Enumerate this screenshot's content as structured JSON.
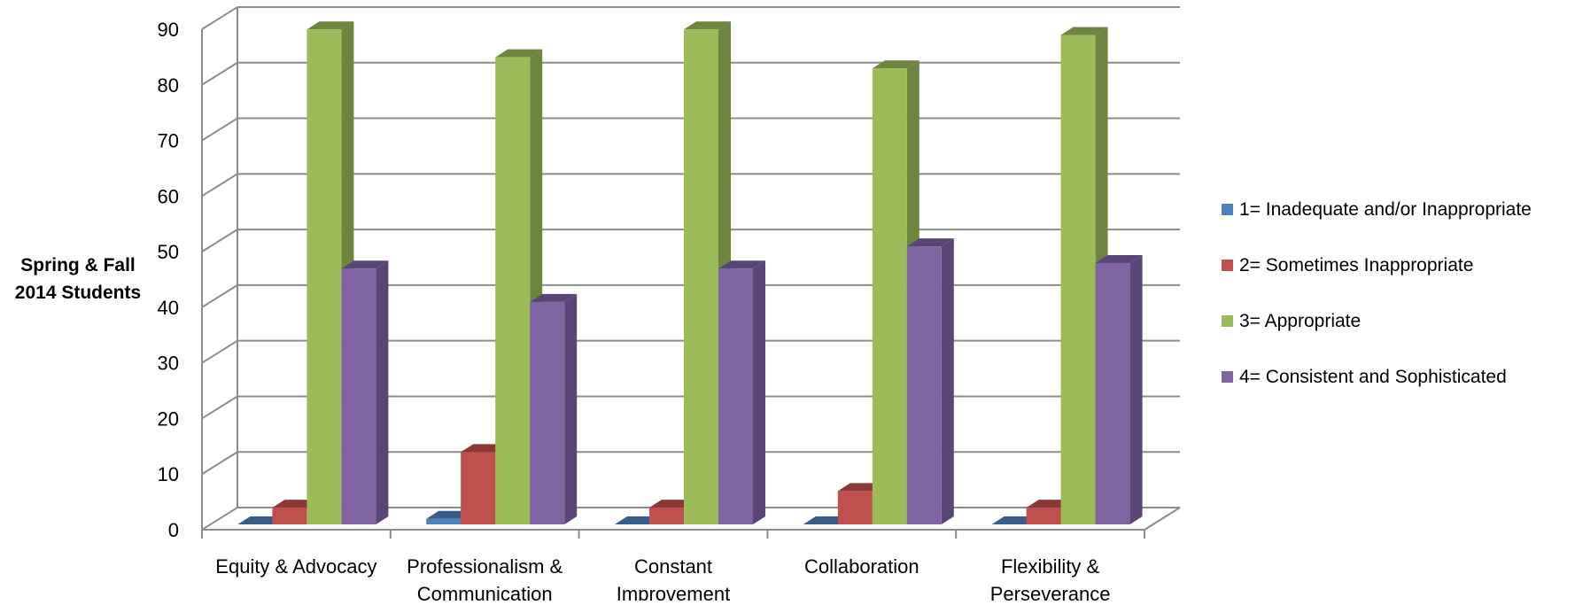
{
  "chart_data": {
    "type": "bar",
    "title": "",
    "xlabel": "",
    "ylabel_lines": [
      "Spring & Fall",
      "2014 Students"
    ],
    "ylim": [
      0,
      90
    ],
    "yticks": [
      "0",
      "10",
      "20",
      "30",
      "40",
      "50",
      "60",
      "70",
      "80",
      "90"
    ],
    "grid": true,
    "legend_position": "right",
    "categories": [
      [
        "Equity & Advocacy"
      ],
      [
        "Professionalism &",
        "Communication"
      ],
      [
        "Constant",
        "Improvement"
      ],
      [
        "Collaboration"
      ],
      [
        "Flexibility &",
        "Perseverance"
      ]
    ],
    "series": [
      {
        "name": "1= Inadequate and/or Inappropriate",
        "color": "#4F81BD",
        "side_color": "#385D8A",
        "values": [
          0,
          1,
          0,
          0,
          0
        ]
      },
      {
        "name": "2= Sometimes Inappropriate",
        "color": "#C0504D",
        "side_color": "#8C3836",
        "values": [
          3,
          13,
          3,
          6,
          3
        ]
      },
      {
        "name": "3= Appropriate",
        "color": "#9BBB59",
        "side_color": "#6E853F",
        "values": [
          89,
          84,
          89,
          82,
          88
        ]
      },
      {
        "name": "4= Consistent and Sophisticated",
        "color": "#8064A2",
        "side_color": "#5A4676",
        "values": [
          46,
          40,
          46,
          50,
          47
        ]
      }
    ]
  }
}
